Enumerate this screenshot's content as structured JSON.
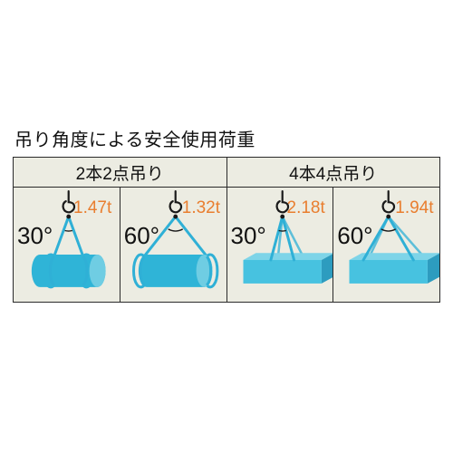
{
  "title": "吊り角度による安全使用荷重",
  "headers": [
    "2本2点吊り",
    "4本4点吊り"
  ],
  "colors": {
    "cell_bg": "#ecece2",
    "border": "#2a2a2a",
    "angle_text": "#111111",
    "load_text": "#e97e2f",
    "hook_stroke": "#1a1a1a",
    "sling_stroke": "#2fb0d6",
    "cyl_fill": "#2fb4d7",
    "cyl_end": "#6fcde3",
    "box_fill": "#47c2e0",
    "box_top": "#7ed4e8",
    "box_side": "#2d9cbf"
  },
  "cells": [
    {
      "angle": "30°",
      "load": "1.47t",
      "shape": "cylinder",
      "half_deg": 15,
      "angle_pos": {
        "l": 4,
        "t": 38
      },
      "load_pos": {
        "l": 66,
        "t": 12
      }
    },
    {
      "angle": "60°",
      "load": "1.32t",
      "shape": "cylinder",
      "half_deg": 30,
      "angle_pos": {
        "l": 4,
        "t": 38
      },
      "load_pos": {
        "l": 68,
        "t": 12
      }
    },
    {
      "angle": "30°",
      "load": "2.18t",
      "shape": "box",
      "half_deg": 15,
      "angle_pos": {
        "l": 4,
        "t": 38
      },
      "load_pos": {
        "l": 66,
        "t": 12
      }
    },
    {
      "angle": "60°",
      "load": "1.94t",
      "shape": "box",
      "half_deg": 30,
      "angle_pos": {
        "l": 4,
        "t": 38
      },
      "load_pos": {
        "l": 68,
        "t": 12
      }
    }
  ],
  "stroke": {
    "sling_w": 3,
    "hook_w": 2.2
  }
}
